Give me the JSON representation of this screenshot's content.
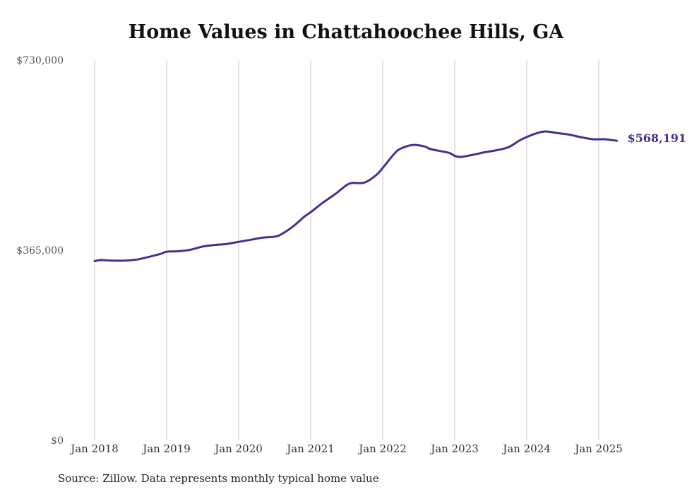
{
  "title": "Home Values in Chattahoochee Hills, GA",
  "source": "Source: Zillow. Data represents monthly typical home value",
  "colors": {
    "line": "#3b3491",
    "grid": "#c8c8c8",
    "end_label": "#3b3491"
  },
  "chart_data": {
    "type": "line",
    "title": "Home Values in Chattahoochee Hills, GA",
    "xlabel": "",
    "ylabel": "",
    "ylim": [
      0,
      730000
    ],
    "xlim": [
      "2018-01",
      "2025-04"
    ],
    "grid": {
      "vertical": true,
      "horizontal": false
    },
    "y_ticks": [
      {
        "value": 0,
        "label": "$0"
      },
      {
        "value": 365000,
        "label": "$365,000"
      },
      {
        "value": 730000,
        "label": "$730,000"
      }
    ],
    "x_ticks": [
      {
        "value": "2018-01",
        "label": "Jan 2018"
      },
      {
        "value": "2019-01",
        "label": "Jan 2019"
      },
      {
        "value": "2020-01",
        "label": "Jan 2020"
      },
      {
        "value": "2021-01",
        "label": "Jan 2021"
      },
      {
        "value": "2022-01",
        "label": "Jan 2022"
      },
      {
        "value": "2023-01",
        "label": "Jan 2023"
      },
      {
        "value": "2024-01",
        "label": "Jan 2024"
      },
      {
        "value": "2025-01",
        "label": "Jan 2025"
      }
    ],
    "end_label": "$568,191",
    "series": [
      {
        "points": [
          [
            "2018-01",
            344000
          ],
          [
            "2018-02",
            346000
          ],
          [
            "2018-04",
            345000
          ],
          [
            "2018-06",
            345000
          ],
          [
            "2018-08",
            347000
          ],
          [
            "2018-10",
            352000
          ],
          [
            "2018-12",
            358000
          ],
          [
            "2019-01",
            362000
          ],
          [
            "2019-03",
            363000
          ],
          [
            "2019-05",
            366000
          ],
          [
            "2019-07",
            372000
          ],
          [
            "2019-09",
            375000
          ],
          [
            "2019-11",
            377000
          ],
          [
            "2020-01",
            381000
          ],
          [
            "2020-03",
            385000
          ],
          [
            "2020-05",
            389000
          ],
          [
            "2020-07",
            391000
          ],
          [
            "2020-08",
            395000
          ],
          [
            "2020-10",
            410000
          ],
          [
            "2020-12",
            430000
          ],
          [
            "2021-01",
            438000
          ],
          [
            "2021-03",
            456000
          ],
          [
            "2021-05",
            472000
          ],
          [
            "2021-07",
            490000
          ],
          [
            "2021-08",
            494000
          ],
          [
            "2021-10",
            495000
          ],
          [
            "2021-12",
            510000
          ],
          [
            "2022-01",
            523000
          ],
          [
            "2022-03",
            551000
          ],
          [
            "2022-04",
            560000
          ],
          [
            "2022-06",
            567000
          ],
          [
            "2022-08",
            564000
          ],
          [
            "2022-09",
            559000
          ],
          [
            "2022-12",
            552000
          ],
          [
            "2023-01",
            546000
          ],
          [
            "2023-02",
            544000
          ],
          [
            "2023-04",
            548000
          ],
          [
            "2023-06",
            553000
          ],
          [
            "2023-08",
            557000
          ],
          [
            "2023-10",
            563000
          ],
          [
            "2023-12",
            577000
          ],
          [
            "2024-02",
            587000
          ],
          [
            "2024-04",
            593000
          ],
          [
            "2024-06",
            590000
          ],
          [
            "2024-08",
            587000
          ],
          [
            "2024-10",
            582000
          ],
          [
            "2024-12",
            578000
          ],
          [
            "2025-02",
            578000
          ],
          [
            "2025-04",
            575000
          ]
        ]
      }
    ]
  }
}
